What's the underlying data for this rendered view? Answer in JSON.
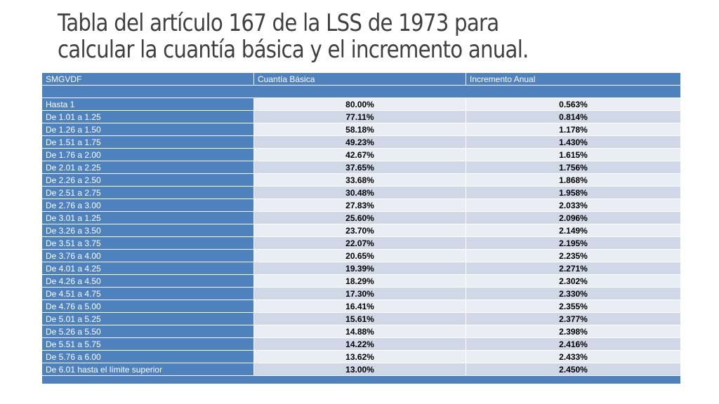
{
  "slide": {
    "title_line1": "Tabla del artículo 167 de la LSS de 1973 para",
    "title_line2": "calcular la cuantía básica y el incremento anual."
  },
  "table": {
    "headers": [
      "SMGVDF",
      "Cuantía Básica",
      "Incremento Anual"
    ],
    "rows": [
      {
        "range": "Hasta 1",
        "cuantia": "80.00%",
        "incremento": "0.563%"
      },
      {
        "range": "De 1.01 a 1.25",
        "cuantia": "77.11%",
        "incremento": "0.814%"
      },
      {
        "range": "De 1.26 a 1.50",
        "cuantia": "58.18%",
        "incremento": "1.178%"
      },
      {
        "range": "De 1.51 a 1.75",
        "cuantia": "49.23%",
        "incremento": "1.430%"
      },
      {
        "range": "De 1.76 a 2.00",
        "cuantia": "42.67%",
        "incremento": "1.615%"
      },
      {
        "range": "De 2.01 a 2.25",
        "cuantia": "37.65%",
        "incremento": "1.756%"
      },
      {
        "range": "De 2.26 a 2.50",
        "cuantia": "33.68%",
        "incremento": "1.868%"
      },
      {
        "range": "De 2.51 a 2.75",
        "cuantia": "30.48%",
        "incremento": "1.958%"
      },
      {
        "range": "De 2.76 a 3.00",
        "cuantia": "27.83%",
        "incremento": "2.033%"
      },
      {
        "range": "De 3.01 a 1.25",
        "cuantia": "25.60%",
        "incremento": "2.096%"
      },
      {
        "range": "De 3.26 a 3.50",
        "cuantia": "23.70%",
        "incremento": "2.149%"
      },
      {
        "range": "De 3.51 a 3.75",
        "cuantia": "22.07%",
        "incremento": "2.195%"
      },
      {
        "range": "De 3.76 a 4.00",
        "cuantia": "20.65%",
        "incremento": "2.235%"
      },
      {
        "range": "De 4.01 a 4.25",
        "cuantia": "19.39%",
        "incremento": "2.271%"
      },
      {
        "range": "De 4.26 a 4.50",
        "cuantia": "18.29%",
        "incremento": "2.302%"
      },
      {
        "range": "De 4.51 a 4.75",
        "cuantia": "17.30%",
        "incremento": "2.330%"
      },
      {
        "range": "De 4.76 a 5.00",
        "cuantia": "16.41%",
        "incremento": "2.355%"
      },
      {
        "range": "De 5.01 a 5.25",
        "cuantia": "15.61%",
        "incremento": "2.377%"
      },
      {
        "range": "De 5.26 a 5.50",
        "cuantia": "14.88%",
        "incremento": "2.398%"
      },
      {
        "range": "De 5.51 a 5.75",
        "cuantia": "14.22%",
        "incremento": "2.416%"
      },
      {
        "range": "De 5.76 a 6.00",
        "cuantia": "13.62%",
        "incremento": "2.433%"
      },
      {
        "range": "De 6.01  hasta el límite superior",
        "cuantia": "13.00%",
        "incremento": "2.450%"
      }
    ]
  },
  "colors": {
    "header": "#4f81bd",
    "band_light": "#e9edf4",
    "band_dark": "#d0d8e8",
    "title_text": "#404040"
  }
}
